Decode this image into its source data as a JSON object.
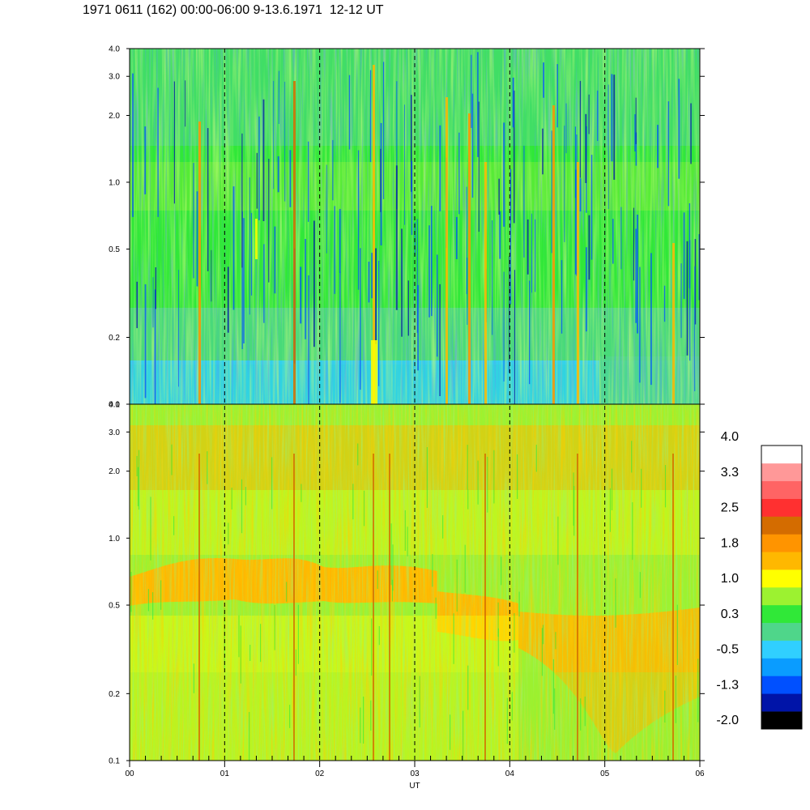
{
  "title": "1971 0611 (162) 00:00-06:00 9-13.6.1971  12-12 UT",
  "chart_data": {
    "type": "heatmap",
    "xlabel": "UT",
    "x_ticks": [
      "00",
      "01",
      "02",
      "03",
      "04",
      "05",
      "06"
    ],
    "xlim": [
      0,
      6
    ],
    "yscale": "log",
    "ylim": [
      0.1,
      4.0
    ],
    "y_ticks": [
      {
        "value": 0.1,
        "label": "0.1"
      },
      {
        "value": 0.2,
        "label": "0.2"
      },
      {
        "value": 0.5,
        "label": "0.5"
      },
      {
        "value": 1.0,
        "label": "1.0"
      },
      {
        "value": 2.0,
        "label": "2.0"
      },
      {
        "value": 3.0,
        "label": "3.0"
      },
      {
        "value": 4.0,
        "label": "4.0"
      }
    ],
    "grid": "dashed vertical lines at each hour",
    "panels": [
      {
        "name": "upper",
        "dominant_level": "0.3",
        "features": [
          "enhanced vertical streaks near 02.5 UT",
          "low-level band below 0.2"
        ]
      },
      {
        "name": "lower",
        "dominant_level": "1.0",
        "features": [
          "enhanced band near 0.5-0.8 from 00 to 03 UT",
          "enhanced region 0.1-0.5 after 04 UT"
        ]
      }
    ],
    "colorbar": {
      "labels": [
        "4.0",
        "3.3",
        "2.5",
        "1.8",
        "1.0",
        "0.3",
        "-0.5",
        "-1.3",
        "-2.0"
      ],
      "colors": [
        "#000000",
        "#0014a8",
        "#0050ff",
        "#0a9cff",
        "#30cfff",
        "#4fd68a",
        "#30e838",
        "#9cf230",
        "#ffff00",
        "#ffb800",
        "#ff9400",
        "#d46c00",
        "#ff3030",
        "#ff6464",
        "#ff9898",
        "#ffffff"
      ]
    }
  }
}
